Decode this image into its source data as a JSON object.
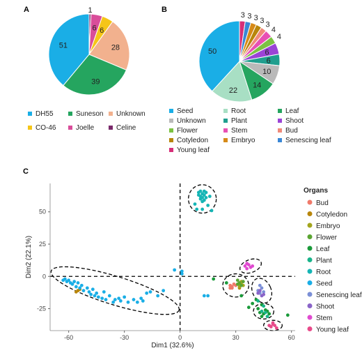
{
  "panels": {
    "a": "A",
    "b": "B",
    "c": "C"
  },
  "chart_data": [
    {
      "type": "pie",
      "panel": "A",
      "series": [
        {
          "name": "DH55",
          "value": 51,
          "color": "#1aaee6"
        },
        {
          "name": "Suneson",
          "value": 39,
          "color": "#25a55f"
        },
        {
          "name": "Unknown",
          "value": 28,
          "color": "#f2b18e"
        },
        {
          "name": "CO-46",
          "value": 6,
          "color": "#f5c518"
        },
        {
          "name": "Joelle",
          "value": 6,
          "color": "#d94d9a"
        },
        {
          "name": "Celine",
          "value": 1,
          "color": "#7a2a6b"
        }
      ],
      "legend_position": "bottom"
    },
    {
      "type": "pie",
      "panel": "B",
      "series": [
        {
          "name": "Seed",
          "value": 50,
          "color": "#1aaee6"
        },
        {
          "name": "Root",
          "value": 22,
          "color": "#a8dfc4"
        },
        {
          "name": "Leaf",
          "value": 14,
          "color": "#25a55f"
        },
        {
          "name": "Unknown",
          "value": 10,
          "color": "#b9b9b9"
        },
        {
          "name": "Plant",
          "value": 6,
          "color": "#1f9e8e"
        },
        {
          "name": "Shoot",
          "value": 6,
          "color": "#9b43d6"
        },
        {
          "name": "Flower",
          "value": 4,
          "color": "#7cc242"
        },
        {
          "name": "Stem",
          "value": 4,
          "color": "#e850b4"
        },
        {
          "name": "Bud",
          "value": 3,
          "color": "#f08a7a"
        },
        {
          "name": "Cotyledon",
          "value": 3,
          "color": "#b8860b"
        },
        {
          "name": "Embryo",
          "value": 3,
          "color": "#d68a18"
        },
        {
          "name": "Senescing leaf",
          "value": 3,
          "color": "#3a87d6"
        },
        {
          "name": "Young leaf",
          "value": 3,
          "color": "#d62f78"
        }
      ],
      "legend_position": "bottom"
    },
    {
      "type": "scatter",
      "panel": "C",
      "xlabel": "Dim1 (32.6%)",
      "ylabel": "Dim2 (22.1%)",
      "xlim": [
        -70,
        62
      ],
      "ylim": [
        -42,
        72
      ],
      "xticks": [
        -60,
        -30,
        0,
        30,
        60
      ],
      "yticks": [
        50,
        25,
        0,
        -25
      ],
      "legend_title": "Organs",
      "legend_position": "right",
      "reference_lines": {
        "x": 0,
        "y": 0,
        "style": "dashed"
      },
      "series": [
        {
          "name": "Bud",
          "color": "#f07a6a",
          "points": [
            [
              27,
              -7
            ],
            [
              28,
              -8
            ],
            [
              29,
              -6
            ],
            [
              28,
              -9
            ],
            [
              30,
              -7
            ],
            [
              27,
              -9
            ]
          ]
        },
        {
          "name": "Cotyledon",
          "color": "#b8860b",
          "points": [
            [
              -55,
              -11
            ],
            [
              -54,
              -10
            ],
            [
              -56,
              -12
            ],
            [
              32,
              -9
            ]
          ]
        },
        {
          "name": "Embryo",
          "color": "#a3a51d",
          "points": [
            [
              32,
              -6
            ],
            [
              33,
              -5
            ],
            [
              32,
              -8
            ],
            [
              34,
              -7
            ],
            [
              33,
              -4
            ]
          ]
        },
        {
          "name": "Flower",
          "color": "#5aa532",
          "points": [
            [
              31,
              -3
            ],
            [
              32,
              -5
            ],
            [
              33,
              -7
            ],
            [
              31,
              -6
            ],
            [
              34,
              -4
            ]
          ]
        },
        {
          "name": "Leaf",
          "color": "#1a9a3a",
          "points": [
            [
              18,
              -2
            ],
            [
              25,
              -5
            ],
            [
              33,
              -15
            ],
            [
              41,
              -18
            ],
            [
              44,
              -22
            ],
            [
              46,
              -26
            ],
            [
              45,
              -29
            ],
            [
              47,
              -27
            ],
            [
              43,
              -28
            ],
            [
              44,
              -31
            ],
            [
              42,
              -25
            ],
            [
              48,
              -29
            ],
            [
              58,
              -30
            ],
            [
              39,
              -21
            ],
            [
              37,
              -24
            ]
          ]
        },
        {
          "name": "Plant",
          "color": "#18b48a",
          "points": [
            [
              45,
              -23
            ],
            [
              46,
              -28
            ],
            [
              44,
              -27
            ],
            [
              42,
              -19
            ],
            [
              47,
              -31
            ]
          ]
        },
        {
          "name": "Root",
          "color": "#15b5b5",
          "points": [
            [
              10,
              65
            ],
            [
              11,
              62
            ],
            [
              12,
              64
            ],
            [
              13,
              66
            ],
            [
              14,
              61
            ],
            [
              11,
              60
            ],
            [
              13,
              63
            ],
            [
              12,
              58
            ],
            [
              16,
              62
            ],
            [
              8,
              56
            ],
            [
              15,
              55
            ],
            [
              9,
              52
            ],
            [
              17,
              51
            ],
            [
              12,
              52
            ],
            [
              14,
              65
            ],
            [
              10,
              63
            ],
            [
              12,
              61
            ],
            [
              11,
              66
            ],
            [
              13,
              59
            ]
          ]
        },
        {
          "name": "Seed",
          "color": "#1aaee6",
          "points": [
            [
              -63,
              -3
            ],
            [
              -61,
              -4
            ],
            [
              -60,
              -3
            ],
            [
              -59,
              -5
            ],
            [
              -58,
              -6
            ],
            [
              -57,
              -4
            ],
            [
              -56,
              -8
            ],
            [
              -55,
              -5
            ],
            [
              -54,
              -9
            ],
            [
              -53,
              -7
            ],
            [
              -52,
              -11
            ],
            [
              -50,
              -9
            ],
            [
              -49,
              -12
            ],
            [
              -48,
              -14
            ],
            [
              -47,
              -10
            ],
            [
              -46,
              -15
            ],
            [
              -45,
              -13
            ],
            [
              -44,
              -16
            ],
            [
              -42,
              -17
            ],
            [
              -41,
              -12
            ],
            [
              -40,
              -18
            ],
            [
              -38,
              -15
            ],
            [
              -36,
              -20
            ],
            [
              -35,
              -18
            ],
            [
              -33,
              -17
            ],
            [
              -32,
              -19
            ],
            [
              -30,
              -16
            ],
            [
              -28,
              -20
            ],
            [
              -25,
              -18
            ],
            [
              -23,
              -20
            ],
            [
              -21,
              -17
            ],
            [
              -20,
              -19
            ],
            [
              -18,
              -13
            ],
            [
              -16,
              -12
            ],
            [
              -12,
              -15
            ],
            [
              -9,
              -11
            ],
            [
              -3,
              5
            ],
            [
              1,
              4
            ],
            [
              1,
              2
            ],
            [
              13,
              -15
            ],
            [
              15,
              -15
            ],
            [
              -62,
              -2
            ]
          ]
        },
        {
          "name": "Senescing leaf",
          "color": "#7b8fd6",
          "points": [
            [
              43,
              -7
            ],
            [
              44,
              -9
            ],
            [
              42,
              -11
            ],
            [
              45,
              -12
            ],
            [
              43,
              -13
            ]
          ]
        },
        {
          "name": "Shoot",
          "color": "#8a64c8",
          "points": [
            [
              42,
              -13
            ],
            [
              44,
              -15
            ],
            [
              43,
              -11
            ],
            [
              45,
              -14
            ]
          ]
        },
        {
          "name": "Stem",
          "color": "#e04ad0",
          "points": [
            [
              35,
              8
            ],
            [
              37,
              9
            ],
            [
              38,
              7
            ],
            [
              36,
              10
            ],
            [
              39,
              8
            ],
            [
              36,
              6
            ]
          ]
        },
        {
          "name": "Young leaf",
          "color": "#e84a8a",
          "points": [
            [
              48,
              -38
            ],
            [
              50,
              -37
            ],
            [
              49,
              -39
            ],
            [
              51,
              -38
            ],
            [
              52,
              -40
            ],
            [
              50,
              -36
            ]
          ]
        }
      ]
    }
  ]
}
